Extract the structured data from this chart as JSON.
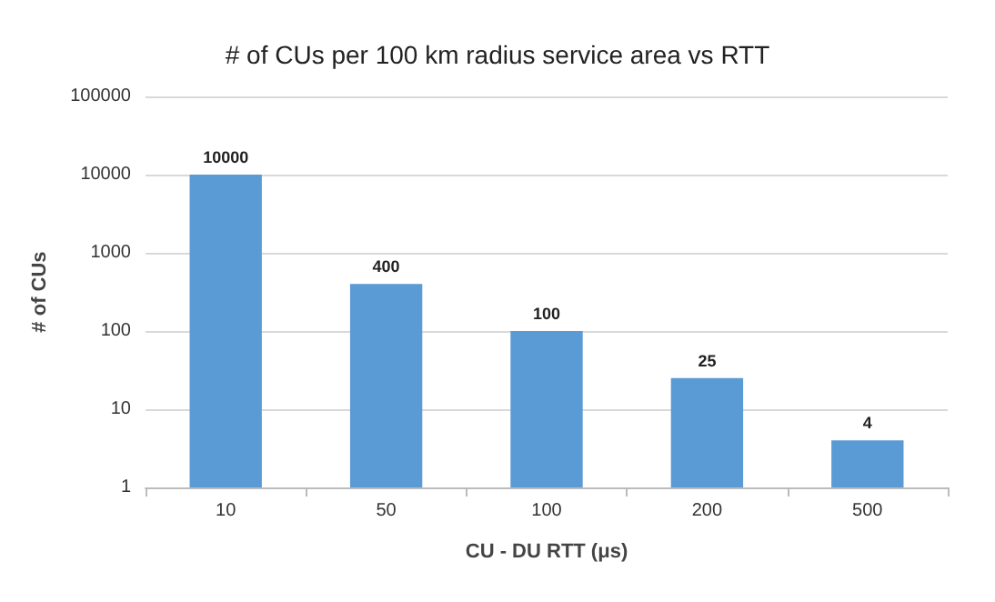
{
  "chart_data": {
    "type": "bar",
    "title": "# of CUs per 100 km radius service area vs RTT",
    "xlabel": "CU - DU RTT (μs)",
    "ylabel": "# of CUs",
    "categories": [
      "10",
      "50",
      "100",
      "200",
      "500"
    ],
    "values": [
      10000,
      400,
      100,
      25,
      4
    ],
    "color": "#5b9bd5",
    "log": "y",
    "ylim": [
      1,
      100000
    ],
    "yticks": [
      1,
      10,
      100,
      1000,
      10000,
      100000
    ],
    "grid": "y",
    "data_labels": true
  }
}
